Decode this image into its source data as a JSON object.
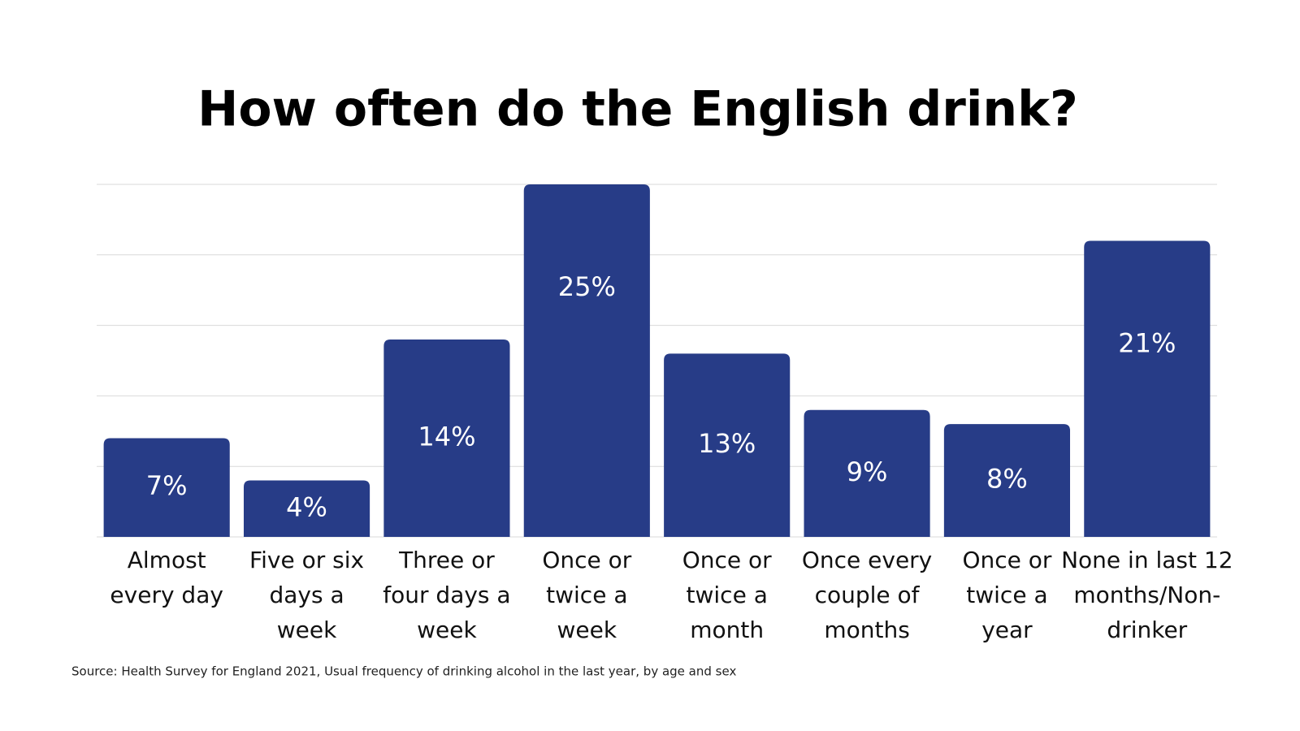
{
  "chart_data": {
    "type": "bar",
    "title": "How often do the English drink?",
    "categories": [
      "Almost every day",
      "Five or six days a week",
      "Three or four days a week",
      "Once or twice a week",
      "Once or twice a month",
      "Once every couple of months",
      "Once or twice a year",
      "None in last 12 months/Non-drinker"
    ],
    "values": [
      7,
      4,
      14,
      25,
      13,
      9,
      8,
      21
    ],
    "value_labels": [
      "7%",
      "4%",
      "14%",
      "25%",
      "13%",
      "9%",
      "8%",
      "21%"
    ],
    "color": "#273c87",
    "ylim": [
      0,
      25
    ],
    "yticks": [
      0,
      5,
      10,
      15,
      20,
      25
    ],
    "grid": true,
    "source": "Source: Health Survey for England 2021, Usual frequency of drinking alcohol in the last year, by age and sex"
  }
}
